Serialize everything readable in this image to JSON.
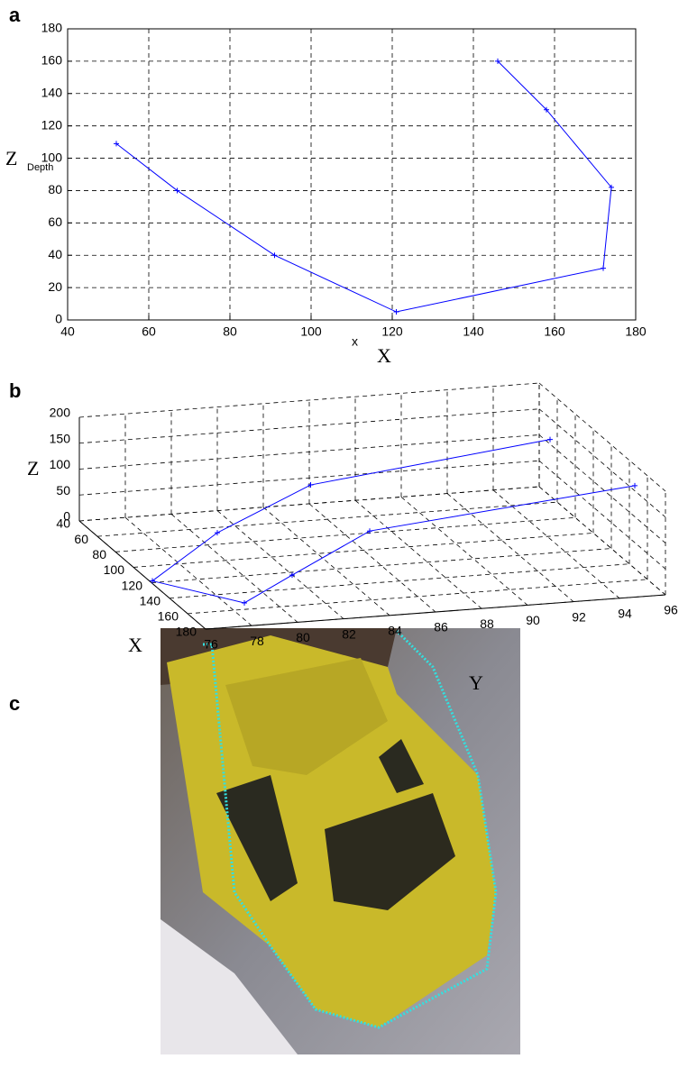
{
  "chart_data": [
    {
      "type": "line",
      "label": "a",
      "ylabel": "Z",
      "ylabel2": "Depth",
      "xlabel": "X",
      "xlabel2": "x",
      "x": [
        52,
        67,
        91,
        121,
        172,
        174,
        158,
        146
      ],
      "values": [
        109,
        80,
        40,
        5,
        32,
        82,
        130,
        160
      ],
      "color": "#0000ff",
      "xlim": [
        40,
        180
      ],
      "xticks": [
        40,
        60,
        80,
        100,
        120,
        140,
        160,
        180
      ],
      "ylim": [
        0,
        180
      ],
      "yticks": [
        0,
        20,
        40,
        60,
        80,
        100,
        120,
        140,
        160,
        180
      ],
      "grid": true
    },
    {
      "type": "line3d",
      "label": "b",
      "xlabel": "X",
      "ylabel": "Y",
      "zlabel": "Z",
      "x": [
        52,
        67,
        91,
        121,
        172,
        174,
        158,
        146
      ],
      "y": [
        96,
        85,
        80,
        76,
        78,
        80,
        84,
        96
      ],
      "z": [
        109,
        80,
        40,
        5,
        32,
        82,
        130,
        160
      ],
      "color": "#0000ff",
      "xlim": [
        40,
        180
      ],
      "xticks": [
        40,
        60,
        80,
        100,
        120,
        140,
        160,
        180
      ],
      "ylim": [
        76,
        96
      ],
      "yticks": [
        76,
        78,
        80,
        82,
        84,
        86,
        88,
        90,
        92,
        94,
        96
      ],
      "zlim": [
        0,
        200
      ],
      "zticks": [
        0,
        50,
        100,
        150,
        200
      ],
      "grid": true
    }
  ],
  "image_panel": {
    "label": "c"
  }
}
